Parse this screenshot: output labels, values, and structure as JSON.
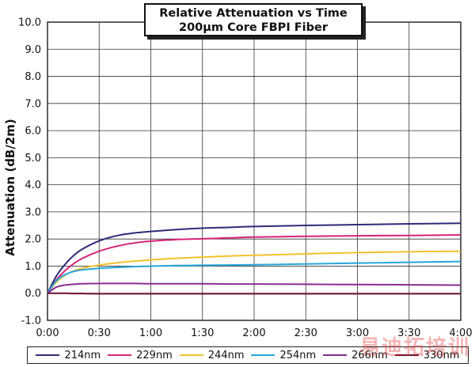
{
  "chart_data": {
    "type": "line",
    "title": "Relative Attenuation vs Time",
    "subtitle": "200µm Core FBPI Fiber",
    "ylabel": "Attenuation (dB/2m)",
    "xlabel": "",
    "xlim": [
      0,
      240
    ],
    "ylim": [
      -1.0,
      10.0
    ],
    "grid": true,
    "legend_position": "bottom",
    "x_ticks": [
      {
        "value": 0,
        "label": "0:00"
      },
      {
        "value": 30,
        "label": "0:30"
      },
      {
        "value": 60,
        "label": "1:00"
      },
      {
        "value": 90,
        "label": "1:30"
      },
      {
        "value": 120,
        "label": "2:00"
      },
      {
        "value": 150,
        "label": "2:30"
      },
      {
        "value": 180,
        "label": "3:00"
      },
      {
        "value": 210,
        "label": "3:30"
      },
      {
        "value": 240,
        "label": "4:00"
      }
    ],
    "y_ticks": [
      {
        "value": -1.0,
        "label": "-1.0"
      },
      {
        "value": 0.0,
        "label": "0.0"
      },
      {
        "value": 1.0,
        "label": "1.0"
      },
      {
        "value": 2.0,
        "label": "2.0"
      },
      {
        "value": 3.0,
        "label": "3.0"
      },
      {
        "value": 4.0,
        "label": "4.0"
      },
      {
        "value": 5.0,
        "label": "5.0"
      },
      {
        "value": 6.0,
        "label": "6.0"
      },
      {
        "value": 7.0,
        "label": "7.0"
      },
      {
        "value": 8.0,
        "label": "8.0"
      },
      {
        "value": 9.0,
        "label": "9.0"
      },
      {
        "value": 10.0,
        "label": "10.0"
      }
    ],
    "x": [
      0,
      5,
      10,
      15,
      20,
      30,
      40,
      50,
      60,
      75,
      90,
      105,
      120,
      150,
      180,
      210,
      240
    ],
    "series": [
      {
        "name": "214nm",
        "color": "#2e2a78",
        "values": [
          0.0,
          0.62,
          1.05,
          1.38,
          1.62,
          1.93,
          2.12,
          2.22,
          2.28,
          2.35,
          2.4,
          2.43,
          2.46,
          2.5,
          2.53,
          2.56,
          2.58
        ]
      },
      {
        "name": "229nm",
        "color": "#d6237a",
        "values": [
          0.0,
          0.48,
          0.82,
          1.08,
          1.28,
          1.55,
          1.73,
          1.85,
          1.92,
          1.98,
          2.01,
          2.04,
          2.07,
          2.1,
          2.12,
          2.13,
          2.15
        ]
      },
      {
        "name": "244nm",
        "color": "#f2c12e",
        "values": [
          0.0,
          0.4,
          0.66,
          0.82,
          0.92,
          1.04,
          1.12,
          1.18,
          1.23,
          1.29,
          1.33,
          1.37,
          1.4,
          1.45,
          1.5,
          1.53,
          1.55
        ]
      },
      {
        "name": "254nm",
        "color": "#23a7d9",
        "values": [
          0.0,
          0.45,
          0.68,
          0.8,
          0.86,
          0.92,
          0.95,
          0.98,
          1.0,
          1.02,
          1.03,
          1.04,
          1.05,
          1.08,
          1.11,
          1.14,
          1.17
        ]
      },
      {
        "name": "266nm",
        "color": "#8c2c8f",
        "values": [
          0.0,
          0.22,
          0.3,
          0.33,
          0.35,
          0.36,
          0.36,
          0.36,
          0.35,
          0.35,
          0.35,
          0.34,
          0.34,
          0.33,
          0.32,
          0.31,
          0.3
        ]
      },
      {
        "name": "330nm",
        "color": "#6a1030",
        "values": [
          0.0,
          0.0,
          0.0,
          -0.01,
          -0.01,
          -0.02,
          -0.02,
          -0.02,
          -0.02,
          -0.02,
          -0.02,
          -0.02,
          -0.02,
          -0.02,
          -0.02,
          -0.02,
          -0.02
        ]
      }
    ]
  },
  "watermark": "易迪拓培训"
}
